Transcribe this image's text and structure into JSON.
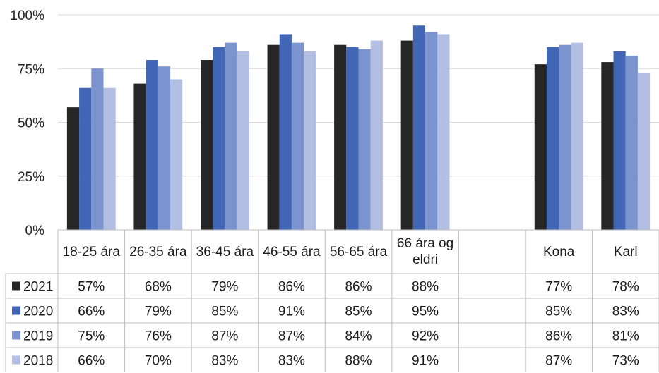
{
  "chart_data": {
    "type": "bar",
    "title": "",
    "xlabel": "",
    "ylabel": "",
    "ylim": [
      0,
      100
    ],
    "y_ticks": [
      "0%",
      "25%",
      "50%",
      "75%",
      "100%"
    ],
    "y_tick_values": [
      0,
      25,
      50,
      75,
      100
    ],
    "grid": true,
    "legend": "data-table rows",
    "categories": [
      [
        "18-25 ára"
      ],
      [
        "26-35 ára"
      ],
      [
        "36-45 ára"
      ],
      [
        "46-55 ára"
      ],
      [
        "56-65 ára"
      ],
      [
        "66 ára og",
        "eldri"
      ],
      [
        ""
      ],
      [
        "Kona"
      ],
      [
        "Karl"
      ]
    ],
    "series": [
      {
        "name": "2021",
        "color": "#262626",
        "values": [
          57,
          68,
          79,
          86,
          86,
          88,
          null,
          77,
          78
        ],
        "labels": [
          "57%",
          "68%",
          "79%",
          "86%",
          "86%",
          "88%",
          "",
          "77%",
          "78%"
        ]
      },
      {
        "name": "2020",
        "color": "#4166b5",
        "values": [
          66,
          79,
          85,
          91,
          85,
          95,
          null,
          85,
          83
        ],
        "labels": [
          "66%",
          "79%",
          "85%",
          "91%",
          "85%",
          "95%",
          "",
          "85%",
          "83%"
        ]
      },
      {
        "name": "2019",
        "color": "#7b93cf",
        "values": [
          75,
          76,
          87,
          87,
          84,
          92,
          null,
          86,
          81
        ],
        "labels": [
          "75%",
          "76%",
          "87%",
          "87%",
          "84%",
          "92%",
          "",
          "86%",
          "81%"
        ]
      },
      {
        "name": "2018",
        "color": "#b2bee2",
        "values": [
          66,
          70,
          83,
          83,
          88,
          91,
          null,
          87,
          73
        ],
        "labels": [
          "66%",
          "70%",
          "83%",
          "83%",
          "88%",
          "91%",
          "",
          "87%",
          "73%"
        ]
      }
    ]
  }
}
